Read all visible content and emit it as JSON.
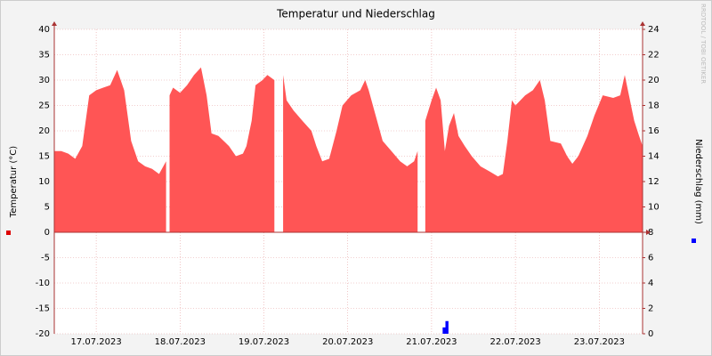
{
  "chart_data": {
    "type": "area",
    "title": "Temperatur und Niederschlag",
    "ylabel": "Temperatur (°C)",
    "y2label": "Niederschlag (mm)",
    "watermark": "RRDTOOL / TOBI OETIKER",
    "x": [
      0,
      2,
      4,
      6,
      8,
      10,
      12,
      14,
      16,
      18,
      20,
      22,
      24,
      26,
      28,
      30,
      32,
      32.7,
      33,
      34,
      36,
      38,
      40,
      42,
      43.6,
      45,
      47,
      50,
      52,
      54,
      55,
      56.5,
      57.6,
      59.6,
      61,
      63,
      64.5,
      65.5,
      66.5,
      68.5,
      71,
      73.6,
      75,
      76.7,
      78.7,
      80.8,
      82.5,
      85,
      87.6,
      89,
      90,
      92,
      94,
      96.5,
      99,
      101,
      103,
      104,
      105.3,
      106.2,
      108,
      109.3,
      110.6,
      111.8,
      113,
      114.4,
      115.7,
      117.5,
      119.5,
      122,
      124.6,
      127,
      128.4,
      129.7,
      131,
      132,
      134.8,
      137,
      139,
      140.4,
      142,
      145,
      146.8,
      148.3,
      150,
      152.6,
      154.6,
      157,
      160,
      162,
      163.3,
      164.8,
      166,
      167.4,
      168.4
    ],
    "series": [
      {
        "color": "#ff5555",
        "values": [
          16,
          16,
          15.5,
          14.5,
          17,
          27,
          28,
          28.5,
          29,
          32,
          28,
          18,
          14,
          13,
          12.5,
          11.5,
          14,
          null,
          27,
          28.5,
          27.5,
          29,
          31,
          32.5,
          27,
          19.5,
          19,
          17,
          15,
          15.5,
          17,
          22,
          29,
          30,
          31,
          30,
          null,
          31,
          26,
          24,
          22,
          20,
          17,
          14,
          14.5,
          20,
          25,
          27,
          28,
          30,
          28,
          23,
          18,
          16,
          14,
          13,
          14,
          16,
          null,
          22,
          26,
          28.5,
          26,
          16,
          21,
          23.5,
          19,
          17,
          15,
          13,
          12,
          11,
          11.5,
          18,
          26,
          25,
          27,
          28,
          30,
          26,
          18,
          17.5,
          15,
          13.5,
          15,
          19,
          23,
          27,
          26.5,
          27,
          31,
          26,
          22,
          19,
          17
        ]
      },
      {
        "type": "bar",
        "axis": "y2",
        "color": "#0000ff",
        "x": [
          111.6,
          112.4
        ],
        "values": [
          0.5,
          1.0
        ]
      }
    ],
    "xlim": [
      0,
      168.4
    ],
    "xticks": [
      {
        "value": 12,
        "label": "17.07.2023"
      },
      {
        "value": 36,
        "label": "18.07.2023"
      },
      {
        "value": 60,
        "label": "19.07.2023"
      },
      {
        "value": 84,
        "label": "20.07.2023"
      },
      {
        "value": 108,
        "label": "21.07.2023"
      },
      {
        "value": 132,
        "label": "22.07.2023"
      },
      {
        "value": 156,
        "label": "23.07.2023"
      }
    ],
    "ylim": [
      -20,
      40
    ],
    "yticks": [
      -20,
      -15,
      -10,
      -5,
      0,
      5,
      10,
      15,
      20,
      25,
      30,
      35,
      40
    ],
    "y2lim": [
      0,
      24
    ],
    "y2ticks": [
      0,
      2,
      4,
      6,
      8,
      10,
      12,
      14,
      16,
      18,
      20,
      22,
      24
    ],
    "grid": true
  }
}
